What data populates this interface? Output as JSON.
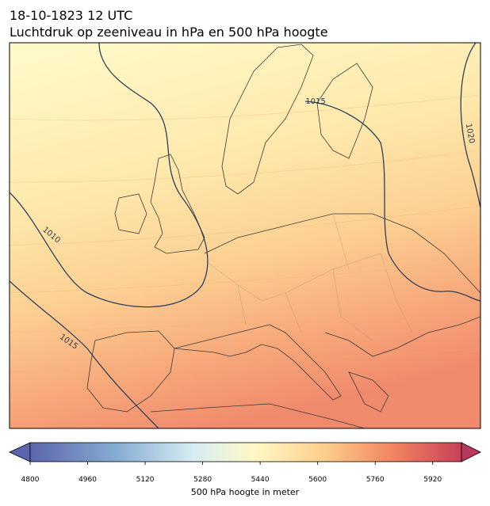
{
  "header": {
    "title": "18-10-1823 12 UTC",
    "subtitle": "Luchtdruk op zeeniveau in hPa en 500 hPa hoogte"
  },
  "map": {
    "isobar_labels": [
      1015,
      1010,
      1015,
      1020
    ]
  },
  "colorbar": {
    "range": [
      4800,
      6000
    ],
    "ticks": [
      4800,
      4960,
      5120,
      5280,
      5440,
      5600,
      5760,
      5920
    ],
    "label": "500 hPa hoogte in meter"
  }
}
